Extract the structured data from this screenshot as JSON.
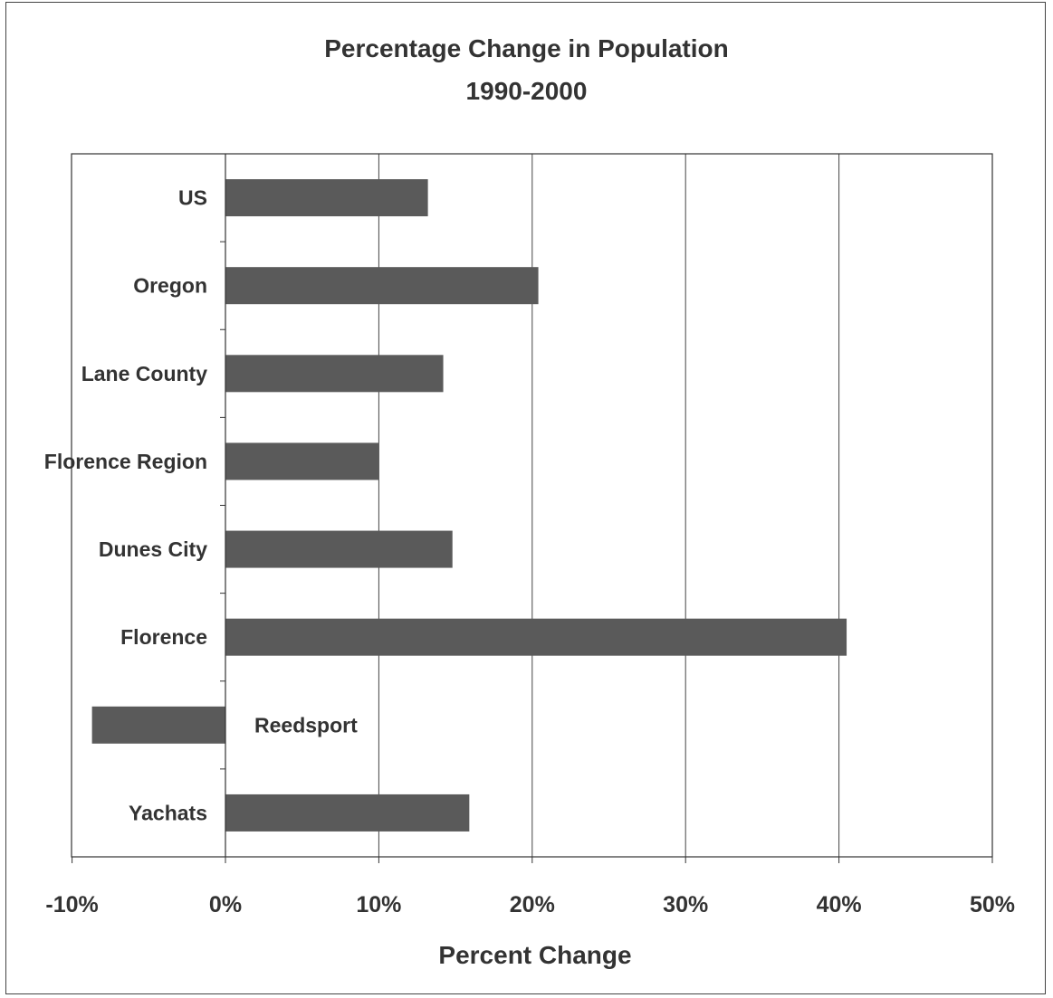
{
  "chart_data": {
    "type": "bar",
    "orientation": "horizontal",
    "title": "Percentage Change in Population",
    "subtitle": "1990-2000",
    "xlabel": "Percent Change",
    "ylabel": "",
    "xlim": [
      -10,
      50
    ],
    "xticks": [
      -10,
      0,
      10,
      20,
      30,
      40,
      50
    ],
    "xtick_labels": [
      "-10%",
      "0%",
      "10%",
      "20%",
      "30%",
      "40%",
      "50%"
    ],
    "grid": "vertical",
    "legend": "none",
    "categories": [
      "US",
      "Oregon",
      "Lane County",
      "Florence Region",
      "Dunes City",
      "Florence",
      "Reedsport",
      "Yachats"
    ],
    "values": [
      13.2,
      20.4,
      14.2,
      10.0,
      14.8,
      40.5,
      -8.7,
      15.9
    ],
    "bar_color": "#5a5a5a"
  }
}
